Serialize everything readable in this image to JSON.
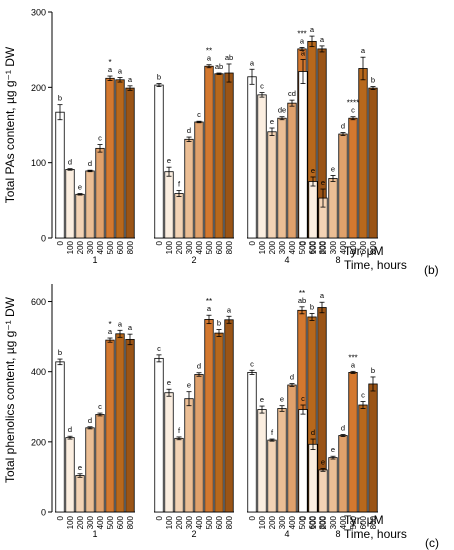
{
  "colors": {
    "axis": "#000000",
    "shade_0": "#ffffff",
    "shade_100": "#fbeee0",
    "shade_200": "#f3d3b5",
    "shade_300": "#ebbe95",
    "shade_400": "#e0a16c",
    "shade_500": "#d3782f",
    "shade_600": "#b7681c",
    "shade_800": "#9a5416"
  },
  "chart_data": [
    {
      "type": "bar",
      "panel": "b",
      "panel_label": "(b)",
      "ylabel": "Total PAs content, µg g⁻¹ DW",
      "tyr_label": "Tyr, μM",
      "time_label": "Time, hours",
      "ylim": [
        0,
        300
      ],
      "yticks": [
        0,
        100,
        200,
        300
      ],
      "grid": false,
      "groups": [
        {
          "time": "1",
          "bars": [
            {
              "tyr": "0",
              "value": 167,
              "err": 10,
              "letter": "b",
              "star": ""
            },
            {
              "tyr": "100",
              "value": 91,
              "err": 1,
              "letter": "d",
              "star": ""
            },
            {
              "tyr": "200",
              "value": 58,
              "err": 1,
              "letter": "e",
              "star": ""
            },
            {
              "tyr": "300",
              "value": 89,
              "err": 1,
              "letter": "d",
              "star": ""
            },
            {
              "tyr": "400",
              "value": 119,
              "err": 5,
              "letter": "c",
              "star": ""
            },
            {
              "tyr": "500",
              "value": 212,
              "err": 3,
              "letter": "a",
              "star": "*"
            },
            {
              "tyr": "600",
              "value": 210,
              "err": 3,
              "letter": "a",
              "star": ""
            },
            {
              "tyr": "800",
              "value": 199,
              "err": 3,
              "letter": "a",
              "star": ""
            }
          ]
        },
        {
          "time": "2",
          "bars": [
            {
              "tyr": "0",
              "value": 203,
              "err": 2,
              "letter": "b",
              "star": ""
            },
            {
              "tyr": "100",
              "value": 88,
              "err": 6,
              "letter": "e",
              "star": ""
            },
            {
              "tyr": "200",
              "value": 59,
              "err": 4,
              "letter": "f",
              "star": ""
            },
            {
              "tyr": "300",
              "value": 131,
              "err": 3,
              "letter": "d",
              "star": ""
            },
            {
              "tyr": "400",
              "value": 154,
              "err": 1,
              "letter": "c",
              "star": ""
            },
            {
              "tyr": "500",
              "value": 228,
              "err": 2,
              "letter": "a",
              "star": "**"
            },
            {
              "tyr": "600",
              "value": 218,
              "err": 1,
              "letter": "ab",
              "star": ""
            },
            {
              "tyr": "800",
              "value": 219,
              "err": 12,
              "letter": "ab",
              "star": ""
            }
          ]
        },
        {
          "time": "4",
          "bars": [
            {
              "tyr": "0",
              "value": 214,
              "err": 10,
              "letter": "a",
              "star": ""
            },
            {
              "tyr": "100",
              "value": 190,
              "err": 3,
              "letter": "c",
              "star": ""
            },
            {
              "tyr": "200",
              "value": 141,
              "err": 5,
              "letter": "e",
              "star": ""
            },
            {
              "tyr": "300",
              "value": 159,
              "err": 2,
              "letter": "de",
              "star": ""
            },
            {
              "tyr": "400",
              "value": 179,
              "err": 4,
              "letter": "cd",
              "star": ""
            },
            {
              "tyr": "500",
              "value": 251,
              "err": 2,
              "letter": "a",
              "star": "***"
            },
            {
              "tyr": "600",
              "value": 261,
              "err": 7,
              "letter": "a",
              "star": ""
            },
            {
              "tyr": "800",
              "value": 251,
              "err": 4,
              "letter": "a",
              "star": ""
            }
          ]
        },
        {
          "time": "8",
          "bars": [
            {
              "tyr": "0",
              "value": 221,
              "err": 16,
              "letter": "a",
              "star": ""
            },
            {
              "tyr": "100",
              "value": 75,
              "err": 6,
              "letter": "e",
              "star": ""
            },
            {
              "tyr": "200",
              "value": 53,
              "err": 12,
              "letter": "e",
              "star": ""
            },
            {
              "tyr": "300",
              "value": 79,
              "err": 4,
              "letter": "e",
              "star": ""
            },
            {
              "tyr": "400",
              "value": 138,
              "err": 2,
              "letter": "d",
              "star": ""
            },
            {
              "tyr": "500",
              "value": 159,
              "err": 2,
              "letter": "c",
              "star": "****"
            },
            {
              "tyr": "600",
              "value": 225,
              "err": 15,
              "letter": "a",
              "star": ""
            },
            {
              "tyr": "800",
              "value": 199,
              "err": 2,
              "letter": "b",
              "star": ""
            }
          ]
        }
      ]
    },
    {
      "type": "bar",
      "panel": "c",
      "panel_label": "(c)",
      "ylabel": "Total phenolics content, µg g⁻¹ DW",
      "tyr_label": "Tyr, μM",
      "time_label": "Time, hours",
      "ylim": [
        0,
        650
      ],
      "yticks": [
        0,
        200,
        400,
        600
      ],
      "grid": false,
      "groups": [
        {
          "time": "1",
          "bars": [
            {
              "tyr": "0",
              "value": 428,
              "err": 8,
              "letter": "b",
              "star": ""
            },
            {
              "tyr": "100",
              "value": 212,
              "err": 4,
              "letter": "d",
              "star": ""
            },
            {
              "tyr": "200",
              "value": 104,
              "err": 5,
              "letter": "e",
              "star": ""
            },
            {
              "tyr": "300",
              "value": 240,
              "err": 3,
              "letter": "d",
              "star": ""
            },
            {
              "tyr": "400",
              "value": 278,
              "err": 4,
              "letter": "c",
              "star": ""
            },
            {
              "tyr": "500",
              "value": 490,
              "err": 6,
              "letter": "a",
              "star": "*"
            },
            {
              "tyr": "600",
              "value": 508,
              "err": 10,
              "letter": "a",
              "star": ""
            },
            {
              "tyr": "800",
              "value": 492,
              "err": 15,
              "letter": "a",
              "star": ""
            }
          ]
        },
        {
          "time": "2",
          "bars": [
            {
              "tyr": "0",
              "value": 438,
              "err": 10,
              "letter": "c",
              "star": ""
            },
            {
              "tyr": "100",
              "value": 340,
              "err": 10,
              "letter": "e",
              "star": ""
            },
            {
              "tyr": "200",
              "value": 210,
              "err": 4,
              "letter": "f",
              "star": ""
            },
            {
              "tyr": "300",
              "value": 323,
              "err": 20,
              "letter": "e",
              "star": ""
            },
            {
              "tyr": "400",
              "value": 392,
              "err": 5,
              "letter": "d",
              "star": ""
            },
            {
              "tyr": "500",
              "value": 549,
              "err": 12,
              "letter": "a",
              "star": "**"
            },
            {
              "tyr": "600",
              "value": 510,
              "err": 10,
              "letter": "b",
              "star": ""
            },
            {
              "tyr": "800",
              "value": 548,
              "err": 10,
              "letter": "a",
              "star": ""
            }
          ]
        },
        {
          "time": "4",
          "bars": [
            {
              "tyr": "0",
              "value": 398,
              "err": 6,
              "letter": "c",
              "star": ""
            },
            {
              "tyr": "100",
              "value": 292,
              "err": 10,
              "letter": "e",
              "star": ""
            },
            {
              "tyr": "200",
              "value": 205,
              "err": 3,
              "letter": "f",
              "star": ""
            },
            {
              "tyr": "300",
              "value": 295,
              "err": 8,
              "letter": "e",
              "star": ""
            },
            {
              "tyr": "400",
              "value": 362,
              "err": 4,
              "letter": "d",
              "star": ""
            },
            {
              "tyr": "500",
              "value": 575,
              "err": 10,
              "letter": "ab",
              "star": "**"
            },
            {
              "tyr": "600",
              "value": 556,
              "err": 10,
              "letter": "b",
              "star": ""
            },
            {
              "tyr": "800",
              "value": 583,
              "err": 15,
              "letter": "a",
              "star": ""
            }
          ]
        },
        {
          "time": "8",
          "bars": [
            {
              "tyr": "0",
              "value": 292,
              "err": 13,
              "letter": "c",
              "star": ""
            },
            {
              "tyr": "100",
              "value": 193,
              "err": 15,
              "letter": "d",
              "star": ""
            },
            {
              "tyr": "200",
              "value": 120,
              "err": 4,
              "letter": "e",
              "star": ""
            },
            {
              "tyr": "300",
              "value": 155,
              "err": 4,
              "letter": "e",
              "star": ""
            },
            {
              "tyr": "400",
              "value": 218,
              "err": 3,
              "letter": "d",
              "star": ""
            },
            {
              "tyr": "500",
              "value": 398,
              "err": 3,
              "letter": "a",
              "star": "***"
            },
            {
              "tyr": "600",
              "value": 305,
              "err": 10,
              "letter": "c",
              "star": ""
            },
            {
              "tyr": "800",
              "value": 365,
              "err": 20,
              "letter": "b",
              "star": ""
            }
          ]
        }
      ]
    }
  ]
}
